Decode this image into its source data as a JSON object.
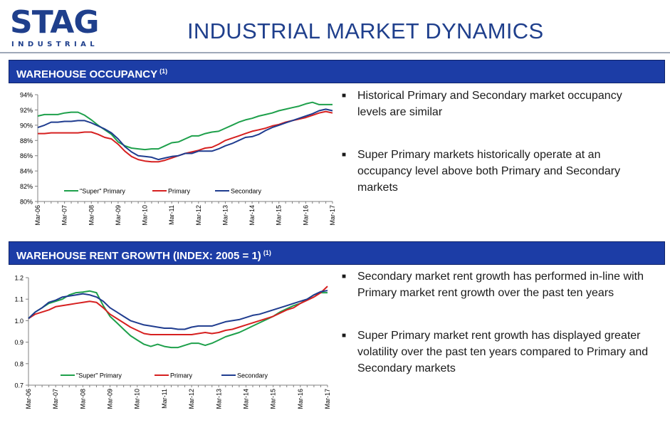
{
  "header": {
    "logo_main": "STAG",
    "logo_sub": "INDUSTRIAL",
    "title": "INDUSTRIAL MARKET DYNAMICS"
  },
  "sections": [
    {
      "heading": "WAREHOUSE OCCUPANCY",
      "footnote": "(1)",
      "bullets": [
        "Historical Primary and Secondary market occupancy levels are similar",
        "Super Primary markets historically operate at an occupancy level above both Primary and Secondary markets"
      ]
    },
    {
      "heading": "WAREHOUSE RENT GROWTH (INDEX: 2005 = 1)",
      "footnote": "(1)",
      "bullets": [
        "Secondary market rent growth has performed in-line with Primary market rent growth over the past ten years",
        "Super Primary market rent growth has displayed greater volatility over the past ten years compared to Primary and Secondary markets"
      ]
    }
  ],
  "chart_data": [
    {
      "type": "line",
      "title": "WAREHOUSE OCCUPANCY",
      "ylim": [
        80,
        94
      ],
      "y_ticks": [
        80,
        82,
        84,
        86,
        88,
        90,
        92,
        94
      ],
      "y_tick_labels": [
        "80%",
        "82%",
        "84%",
        "86%",
        "88%",
        "90%",
        "92%",
        "94%"
      ],
      "x_tick_labels": [
        "Mar-06",
        "Mar-07",
        "Mar-08",
        "Mar-09",
        "Mar-10",
        "Mar-11",
        "Mar-12",
        "Mar-13",
        "Mar-14",
        "Mar-15",
        "Mar-16",
        "Mar-17"
      ],
      "x": [
        "Mar-06",
        "Jun-06",
        "Sep-06",
        "Dec-06",
        "Mar-07",
        "Jun-07",
        "Sep-07",
        "Dec-07",
        "Mar-08",
        "Jun-08",
        "Sep-08",
        "Dec-08",
        "Mar-09",
        "Jun-09",
        "Sep-09",
        "Dec-09",
        "Mar-10",
        "Jun-10",
        "Sep-10",
        "Dec-10",
        "Mar-11",
        "Jun-11",
        "Sep-11",
        "Dec-11",
        "Mar-12",
        "Jun-12",
        "Sep-12",
        "Dec-12",
        "Mar-13",
        "Jun-13",
        "Sep-13",
        "Dec-13",
        "Mar-14",
        "Jun-14",
        "Sep-14",
        "Dec-14",
        "Mar-15",
        "Jun-15",
        "Sep-15",
        "Dec-15",
        "Mar-16",
        "Jun-16",
        "Sep-16",
        "Dec-16",
        "Mar-17"
      ],
      "legend_position": "bottom",
      "grid": false,
      "series": [
        {
          "name": "\"Super\" Primary",
          "color": "#1ea04b",
          "values": [
            91.2,
            91.4,
            91.4,
            91.4,
            91.6,
            91.7,
            91.7,
            91.3,
            90.7,
            90.0,
            89.4,
            88.8,
            87.8,
            87.3,
            87.0,
            86.9,
            86.8,
            86.9,
            86.9,
            87.3,
            87.7,
            87.8,
            88.2,
            88.6,
            88.6,
            88.9,
            89.1,
            89.2,
            89.6,
            90.0,
            90.4,
            90.7,
            90.9,
            91.2,
            91.4,
            91.6,
            91.9,
            92.1,
            92.3,
            92.5,
            92.8,
            93.0,
            92.7,
            92.7,
            92.7
          ]
        },
        {
          "name": "Primary",
          "color": "#d62020",
          "values": [
            88.9,
            88.9,
            89.0,
            89.0,
            89.0,
            89.0,
            89.0,
            89.1,
            89.1,
            88.8,
            88.4,
            88.2,
            87.5,
            86.6,
            85.9,
            85.5,
            85.3,
            85.2,
            85.2,
            85.4,
            85.7,
            86.0,
            86.3,
            86.5,
            86.7,
            87.0,
            87.1,
            87.5,
            88.0,
            88.3,
            88.6,
            88.9,
            89.2,
            89.4,
            89.6,
            89.9,
            90.1,
            90.4,
            90.6,
            90.8,
            91.0,
            91.3,
            91.6,
            91.8,
            91.6
          ]
        },
        {
          "name": "Secondary",
          "color": "#1f3c8f",
          "values": [
            89.7,
            90.0,
            90.4,
            90.4,
            90.5,
            90.5,
            90.6,
            90.6,
            90.3,
            89.9,
            89.5,
            89.0,
            88.2,
            87.2,
            86.5,
            86.0,
            85.9,
            85.8,
            85.5,
            85.7,
            85.9,
            86.0,
            86.3,
            86.3,
            86.6,
            86.6,
            86.6,
            86.9,
            87.3,
            87.6,
            88.0,
            88.4,
            88.5,
            88.8,
            89.3,
            89.7,
            90.0,
            90.3,
            90.6,
            90.9,
            91.2,
            91.5,
            91.9,
            92.1,
            91.9
          ]
        }
      ]
    },
    {
      "type": "line",
      "title": "WAREHOUSE RENT GROWTH (INDEX: 2005 = 1)",
      "ylim": [
        0.7,
        1.2
      ],
      "y_ticks": [
        0.7,
        0.8,
        0.9,
        1.0,
        1.1,
        1.2
      ],
      "y_tick_labels": [
        "0.7",
        "0.8",
        "0.9",
        "1.0",
        "1.1",
        "1.2"
      ],
      "x_tick_labels": [
        "Mar-06",
        "Mar-07",
        "Mar-08",
        "Mar-09",
        "Mar-10",
        "Mar-11",
        "Mar-12",
        "Mar-13",
        "Mar-14",
        "Mar-15",
        "Mar-16",
        "Mar-17"
      ],
      "x": [
        "Mar-06",
        "Jun-06",
        "Sep-06",
        "Dec-06",
        "Mar-07",
        "Jun-07",
        "Sep-07",
        "Dec-07",
        "Mar-08",
        "Jun-08",
        "Sep-08",
        "Dec-08",
        "Mar-09",
        "Jun-09",
        "Sep-09",
        "Dec-09",
        "Mar-10",
        "Jun-10",
        "Sep-10",
        "Dec-10",
        "Mar-11",
        "Jun-11",
        "Sep-11",
        "Dec-11",
        "Mar-12",
        "Jun-12",
        "Sep-12",
        "Dec-12",
        "Mar-13",
        "Jun-13",
        "Sep-13",
        "Dec-13",
        "Mar-14",
        "Jun-14",
        "Sep-14",
        "Dec-14",
        "Mar-15",
        "Jun-15",
        "Sep-15",
        "Dec-15",
        "Mar-16",
        "Jun-16",
        "Sep-16",
        "Dec-16",
        "Mar-17"
      ],
      "legend_position": "bottom",
      "grid": false,
      "series": [
        {
          "name": "\"Super\" Primary",
          "color": "#1ea04b",
          "values": [
            1.01,
            1.04,
            1.06,
            1.08,
            1.09,
            1.1,
            1.12,
            1.13,
            1.133,
            1.138,
            1.13,
            1.07,
            1.02,
            0.99,
            0.96,
            0.93,
            0.91,
            0.89,
            0.88,
            0.89,
            0.88,
            0.875,
            0.875,
            0.885,
            0.895,
            0.895,
            0.885,
            0.895,
            0.91,
            0.925,
            0.935,
            0.945,
            0.96,
            0.975,
            0.99,
            1.005,
            1.02,
            1.04,
            1.055,
            1.07,
            1.08,
            1.1,
            1.12,
            1.13,
            1.13
          ]
        },
        {
          "name": "Primary",
          "color": "#d62020",
          "values": [
            1.01,
            1.03,
            1.04,
            1.05,
            1.065,
            1.07,
            1.075,
            1.08,
            1.085,
            1.09,
            1.085,
            1.06,
            1.03,
            1.01,
            0.99,
            0.97,
            0.955,
            0.94,
            0.935,
            0.935,
            0.935,
            0.935,
            0.935,
            0.935,
            0.935,
            0.94,
            0.945,
            0.94,
            0.945,
            0.955,
            0.96,
            0.97,
            0.98,
            0.99,
            1.0,
            1.01,
            1.02,
            1.035,
            1.05,
            1.06,
            1.08,
            1.095,
            1.11,
            1.13,
            1.16
          ]
        },
        {
          "name": "Secondary",
          "color": "#1f3c8f",
          "values": [
            1.01,
            1.04,
            1.06,
            1.085,
            1.095,
            1.11,
            1.115,
            1.12,
            1.125,
            1.12,
            1.11,
            1.09,
            1.06,
            1.04,
            1.02,
            1.0,
            0.99,
            0.98,
            0.975,
            0.97,
            0.965,
            0.965,
            0.96,
            0.96,
            0.97,
            0.975,
            0.975,
            0.975,
            0.985,
            0.995,
            1.0,
            1.005,
            1.015,
            1.025,
            1.03,
            1.04,
            1.05,
            1.06,
            1.07,
            1.08,
            1.09,
            1.1,
            1.12,
            1.135,
            1.14
          ]
        }
      ]
    }
  ]
}
